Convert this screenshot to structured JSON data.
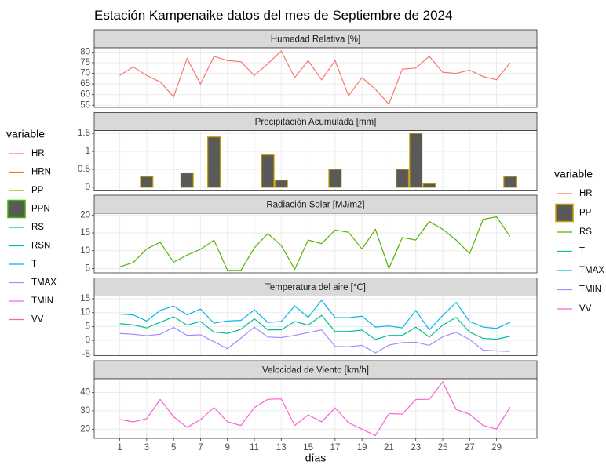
{
  "title": "Estación Kampenaike datos del mes de Septiembre de 2024",
  "xlabel": "días",
  "x": [
    1,
    2,
    3,
    4,
    5,
    6,
    7,
    8,
    9,
    10,
    11,
    12,
    13,
    14,
    15,
    16,
    17,
    18,
    19,
    20,
    21,
    22,
    23,
    24,
    25,
    26,
    27,
    28,
    29,
    30
  ],
  "xlim": [
    -0.9,
    32
  ],
  "xticks": [
    1,
    3,
    5,
    7,
    9,
    11,
    13,
    15,
    17,
    19,
    21,
    23,
    25,
    27,
    29
  ],
  "grid": true,
  "legends": [
    {
      "title": "variable",
      "position": "left",
      "items": [
        {
          "name": "HR",
          "color": "#F8766D",
          "key": "line"
        },
        {
          "name": "HRN",
          "color": "#D89000",
          "key": "line"
        },
        {
          "name": "PP",
          "color": "#A3A500",
          "key": "line"
        },
        {
          "name": "PPN",
          "color": "#39B600",
          "fill": "#595959",
          "key": "box"
        },
        {
          "name": "RS",
          "color": "#00BF7D",
          "key": "line"
        },
        {
          "name": "RSN",
          "color": "#00BFC4",
          "key": "line"
        },
        {
          "name": "T",
          "color": "#00B0F6",
          "key": "line"
        },
        {
          "name": "TMAX",
          "color": "#9590FF",
          "key": "line"
        },
        {
          "name": "TMIN",
          "color": "#E76BF3",
          "key": "line"
        },
        {
          "name": "VV",
          "color": "#FF62BC",
          "key": "line"
        }
      ]
    },
    {
      "title": "variable",
      "position": "right",
      "items": [
        {
          "name": "HR",
          "color": "#F8766D",
          "key": "line"
        },
        {
          "name": "PP",
          "color": "#C49A00",
          "fill": "#595959",
          "key": "box"
        },
        {
          "name": "RS",
          "color": "#53B400",
          "key": "line"
        },
        {
          "name": "T",
          "color": "#00C094",
          "key": "line"
        },
        {
          "name": "TMAX",
          "color": "#00B6EB",
          "key": "line"
        },
        {
          "name": "TMIN",
          "color": "#A58AFF",
          "key": "line"
        },
        {
          "name": "VV",
          "color": "#FB61D7",
          "key": "line"
        }
      ]
    }
  ],
  "chart_data": [
    {
      "type": "line",
      "title": "Humedad Relativa [%]",
      "ylim": [
        54,
        82
      ],
      "yticks": [
        55,
        60,
        65,
        70,
        75,
        80
      ],
      "series": [
        {
          "name": "HR",
          "color": "#F8766D",
          "values": [
            69,
            73,
            69,
            66,
            59,
            77,
            65,
            78,
            76,
            75.5,
            69,
            74.5,
            80.5,
            68,
            76,
            67,
            76,
            59.5,
            68,
            62.5,
            55.5,
            72,
            72.5,
            78,
            70.5,
            70,
            71.5,
            68.5,
            67,
            75
          ]
        }
      ]
    },
    {
      "type": "bar",
      "title": "Precipitación Acumulada [mm]",
      "ylim": [
        -0.08,
        1.58
      ],
      "yticks": [
        0.0,
        0.5,
        1.0,
        1.5
      ],
      "series": [
        {
          "name": "PP",
          "color": "#C49A00",
          "fill": "#595959",
          "values": [
            0,
            0,
            0.3,
            0,
            0,
            0.4,
            0,
            1.4,
            0,
            0,
            0,
            0.9,
            0.2,
            0,
            0,
            0,
            0.5,
            0,
            0,
            0,
            0,
            0.5,
            1.5,
            0.1,
            0,
            0,
            0,
            0,
            0,
            0.3
          ]
        }
      ]
    },
    {
      "type": "line",
      "title": "Radiación Solar [MJ/m2]",
      "ylim": [
        3.8,
        20.5
      ],
      "yticks": [
        5,
        10,
        15,
        20
      ],
      "series": [
        {
          "name": "RS",
          "color": "#53B400",
          "values": [
            5.5,
            6.7,
            10.5,
            12.4,
            6.8,
            8.8,
            10.4,
            13,
            4.5,
            4.5,
            10.8,
            14.8,
            11.5,
            4.8,
            13,
            12,
            15.8,
            15.2,
            10.5,
            16,
            5,
            13.7,
            13,
            18.2,
            16,
            13,
            9.2,
            18.8,
            19.5,
            14
          ]
        }
      ]
    },
    {
      "type": "line",
      "title": "Temperatura del aire [°C]",
      "ylim": [
        -5.5,
        16
      ],
      "yticks": [
        -5,
        0,
        5,
        10,
        15
      ],
      "series": [
        {
          "name": "T",
          "color": "#00C094",
          "values": [
            6,
            5.6,
            4.5,
            6.5,
            8.5,
            5.5,
            6.8,
            3,
            2.5,
            4,
            7.8,
            3.8,
            3.8,
            6.8,
            5.5,
            9,
            3.2,
            3.2,
            3.7,
            0.3,
            1.8,
            1.8,
            4.8,
            1.2,
            5.5,
            8.3,
            3,
            0.7,
            0.4,
            1.5
          ]
        },
        {
          "name": "TMAX",
          "color": "#00B6EB",
          "values": [
            9.5,
            9.2,
            7,
            10.8,
            12.4,
            9.2,
            11.3,
            6.2,
            7,
            7.2,
            11,
            6.5,
            6.8,
            12.4,
            8.3,
            14.5,
            8.2,
            8.2,
            8.7,
            4.8,
            5.2,
            4.5,
            10.8,
            3.8,
            9,
            13.7,
            6.8,
            4.8,
            4.3,
            6.5
          ]
        },
        {
          "name": "TMIN",
          "color": "#A58AFF",
          "values": [
            2.5,
            2.2,
            1.7,
            2.2,
            4.7,
            1.8,
            2,
            -0.5,
            -3,
            0.8,
            4.8,
            1.2,
            1,
            1.8,
            2.8,
            3.8,
            -2.2,
            -2.3,
            -1.8,
            -4.5,
            -1.7,
            -0.8,
            -0.7,
            -1.8,
            1.3,
            2.9,
            0.3,
            -3.5,
            -3.8,
            -4
          ]
        }
      ]
    },
    {
      "type": "line",
      "title": "Velocidad de Viento [km/h]",
      "ylim": [
        15,
        47.5
      ],
      "yticks": [
        20,
        30,
        40
      ],
      "series": [
        {
          "name": "VV",
          "color": "#FB61D7",
          "values": [
            25.3,
            24,
            25.7,
            36.2,
            26.8,
            21,
            25.2,
            31.8,
            24,
            22,
            31.8,
            36.3,
            36.5,
            22,
            27.8,
            24,
            31.6,
            23.5,
            20,
            16.5,
            28.5,
            28.2,
            36.2,
            36.3,
            45.8,
            30.7,
            28.2,
            22,
            20,
            32
          ]
        }
      ]
    }
  ]
}
